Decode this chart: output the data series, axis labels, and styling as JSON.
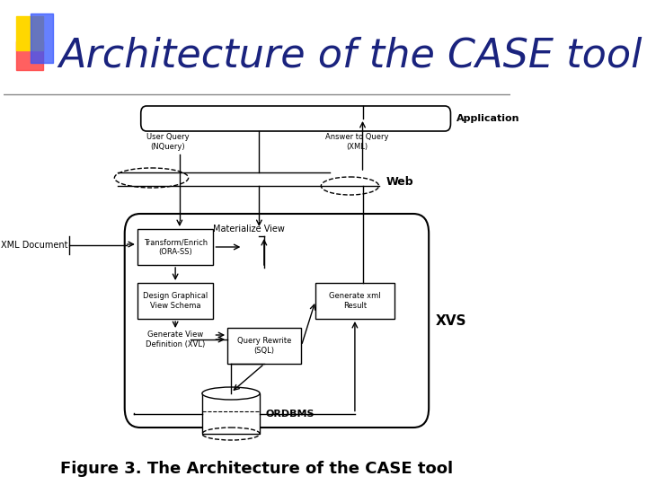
{
  "title": "Architecture of the CASE tool",
  "caption": "Figure 3. The Architecture of the CASE tool",
  "bg_color": "#ffffff",
  "title_color": "#1a237e",
  "title_fontsize": 32,
  "caption_fontsize": 13,
  "decoration_colors": [
    "#FFD700",
    "#FF4444",
    "#3355FF"
  ],
  "labels": {
    "application": "Application",
    "web": "Web",
    "xvs": "XVS",
    "ordbms": "ORDBMS",
    "xml_document": "XML Document",
    "user_query": "User Query\n(NQuery)",
    "answer_to_query": "Answer to Query\n(XML)",
    "transform": "Transform/Enrich\n(ORA-SS)",
    "design": "Design Graphical\nView Schema",
    "generate_view": "Generate View\nDefinition (XVL)",
    "materialize": "Materialize View",
    "query_rewrite": "Query Rewrite\n(SQL)",
    "generate_xml": "Generate xml\nResult"
  }
}
